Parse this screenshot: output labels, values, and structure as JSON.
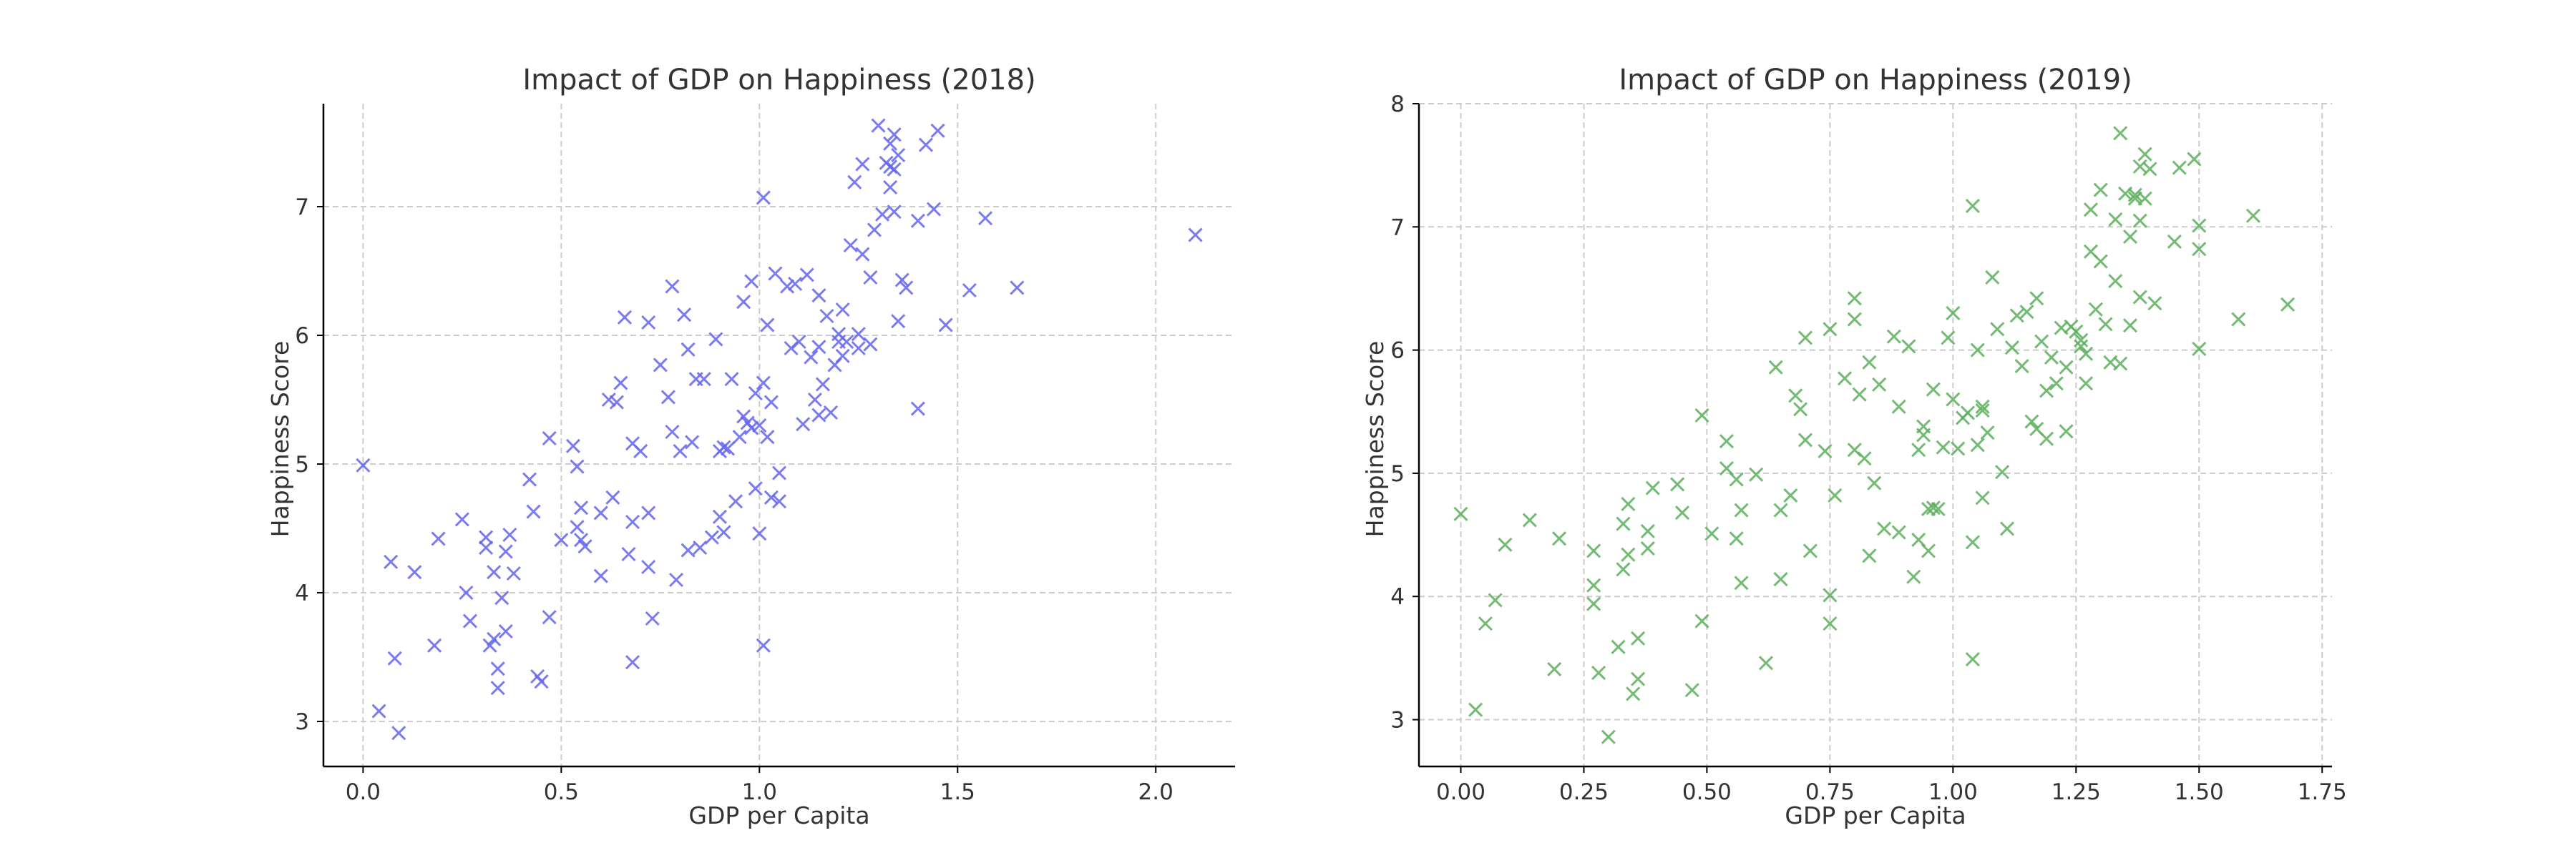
{
  "chart_data": [
    {
      "type": "scatter",
      "title": "Impact of GDP on Happiness (2018)",
      "xlabel": "GDP per Capita",
      "ylabel": "Happiness Score",
      "xlim": [
        -0.1,
        2.2
      ],
      "ylim": [
        2.65,
        7.8
      ],
      "xticks": [
        0.0,
        0.5,
        1.0,
        1.5,
        2.0
      ],
      "xtick_labels": [
        "0.0",
        "0.5",
        "1.0",
        "1.5",
        "2.0"
      ],
      "yticks": [
        3,
        4,
        5,
        6,
        7
      ],
      "ytick_labels": [
        "3",
        "4",
        "5",
        "6",
        "7"
      ],
      "grid": true,
      "marker": "x",
      "color": "#6464ee",
      "points": [
        [
          0.0,
          4.99
        ],
        [
          0.04,
          3.08
        ],
        [
          0.07,
          4.24
        ],
        [
          0.08,
          3.49
        ],
        [
          0.09,
          2.91
        ],
        [
          0.13,
          4.16
        ],
        [
          0.18,
          3.59
        ],
        [
          0.19,
          4.42
        ],
        [
          0.25,
          4.57
        ],
        [
          0.26,
          4.0
        ],
        [
          0.27,
          3.78
        ],
        [
          0.31,
          4.35
        ],
        [
          0.31,
          4.43
        ],
        [
          0.32,
          3.59
        ],
        [
          0.33,
          3.64
        ],
        [
          0.33,
          4.16
        ],
        [
          0.34,
          3.41
        ],
        [
          0.34,
          3.26
        ],
        [
          0.35,
          3.96
        ],
        [
          0.36,
          3.7
        ],
        [
          0.36,
          4.32
        ],
        [
          0.37,
          4.45
        ],
        [
          0.38,
          4.15
        ],
        [
          0.42,
          4.88
        ],
        [
          0.43,
          4.63
        ],
        [
          0.44,
          3.35
        ],
        [
          0.45,
          3.31
        ],
        [
          0.47,
          5.2
        ],
        [
          0.47,
          3.81
        ],
        [
          0.5,
          4.41
        ],
        [
          0.53,
          5.14
        ],
        [
          0.54,
          4.98
        ],
        [
          0.54,
          4.51
        ],
        [
          0.55,
          4.66
        ],
        [
          0.55,
          4.41
        ],
        [
          0.56,
          4.36
        ],
        [
          0.6,
          4.62
        ],
        [
          0.6,
          4.13
        ],
        [
          0.62,
          5.5
        ],
        [
          0.63,
          4.74
        ],
        [
          0.64,
          5.48
        ],
        [
          0.65,
          5.63
        ],
        [
          0.66,
          6.14
        ],
        [
          0.67,
          4.3
        ],
        [
          0.68,
          4.55
        ],
        [
          0.68,
          3.46
        ],
        [
          0.68,
          5.16
        ],
        [
          0.7,
          5.1
        ],
        [
          0.72,
          4.62
        ],
        [
          0.72,
          4.2
        ],
        [
          0.72,
          6.1
        ],
        [
          0.73,
          3.8
        ],
        [
          0.75,
          5.77
        ],
        [
          0.77,
          5.52
        ],
        [
          0.78,
          5.25
        ],
        [
          0.78,
          6.38
        ],
        [
          0.79,
          4.1
        ],
        [
          0.8,
          5.1
        ],
        [
          0.81,
          6.16
        ],
        [
          0.82,
          4.33
        ],
        [
          0.82,
          5.89
        ],
        [
          0.83,
          5.17
        ],
        [
          0.84,
          5.66
        ],
        [
          0.85,
          4.35
        ],
        [
          0.86,
          5.66
        ],
        [
          0.88,
          4.43
        ],
        [
          0.89,
          5.97
        ],
        [
          0.9,
          4.59
        ],
        [
          0.9,
          5.1
        ],
        [
          0.91,
          5.13
        ],
        [
          0.91,
          4.47
        ],
        [
          0.92,
          5.12
        ],
        [
          0.93,
          5.66
        ],
        [
          0.94,
          4.71
        ],
        [
          0.95,
          5.21
        ],
        [
          0.96,
          6.26
        ],
        [
          0.96,
          5.37
        ],
        [
          0.97,
          5.32
        ],
        [
          0.98,
          6.42
        ],
        [
          0.98,
          5.28
        ],
        [
          0.99,
          5.55
        ],
        [
          0.99,
          4.81
        ],
        [
          1.0,
          5.3
        ],
        [
          1.0,
          4.46
        ],
        [
          1.01,
          5.63
        ],
        [
          1.01,
          7.07
        ],
        [
          1.01,
          3.59
        ],
        [
          1.02,
          6.08
        ],
        [
          1.02,
          5.21
        ],
        [
          1.03,
          4.74
        ],
        [
          1.03,
          5.48
        ],
        [
          1.04,
          6.48
        ],
        [
          1.05,
          4.93
        ],
        [
          1.05,
          4.71
        ],
        [
          1.07,
          6.38
        ],
        [
          1.08,
          5.9
        ],
        [
          1.09,
          6.4
        ],
        [
          1.1,
          5.95
        ],
        [
          1.11,
          5.31
        ],
        [
          1.12,
          6.47
        ],
        [
          1.13,
          5.83
        ],
        [
          1.14,
          5.5
        ],
        [
          1.15,
          5.38
        ],
        [
          1.15,
          6.31
        ],
        [
          1.15,
          5.91
        ],
        [
          1.16,
          5.62
        ],
        [
          1.17,
          6.15
        ],
        [
          1.18,
          5.4
        ],
        [
          1.19,
          5.77
        ],
        [
          1.2,
          6.01
        ],
        [
          1.2,
          5.95
        ],
        [
          1.21,
          5.84
        ],
        [
          1.21,
          6.2
        ],
        [
          1.22,
          5.95
        ],
        [
          1.23,
          6.7
        ],
        [
          1.24,
          7.19
        ],
        [
          1.25,
          6.01
        ],
        [
          1.25,
          5.9
        ],
        [
          1.26,
          7.33
        ],
        [
          1.26,
          6.63
        ],
        [
          1.28,
          5.93
        ],
        [
          1.28,
          6.45
        ],
        [
          1.29,
          6.82
        ],
        [
          1.3,
          7.63
        ],
        [
          1.31,
          6.94
        ],
        [
          1.32,
          7.34
        ],
        [
          1.33,
          7.15
        ],
        [
          1.33,
          7.31
        ],
        [
          1.33,
          7.49
        ],
        [
          1.34,
          7.56
        ],
        [
          1.34,
          7.29
        ],
        [
          1.34,
          6.96
        ],
        [
          1.35,
          7.4
        ],
        [
          1.35,
          6.11
        ],
        [
          1.36,
          6.43
        ],
        [
          1.37,
          6.37
        ],
        [
          1.4,
          6.89
        ],
        [
          1.4,
          5.43
        ],
        [
          1.42,
          7.48
        ],
        [
          1.44,
          6.98
        ],
        [
          1.45,
          7.59
        ],
        [
          1.47,
          6.08
        ],
        [
          1.53,
          6.35
        ],
        [
          1.57,
          6.91
        ],
        [
          1.65,
          6.37
        ],
        [
          2.1,
          6.78
        ]
      ]
    },
    {
      "type": "scatter",
      "title": "Impact of GDP on Happiness (2019)",
      "xlabel": "GDP per Capita",
      "ylabel": "Happiness Score",
      "xlim": [
        -0.085,
        1.77
      ],
      "ylim": [
        2.62,
        8.0
      ],
      "xticks": [
        0.0,
        0.25,
        0.5,
        0.75,
        1.0,
        1.25,
        1.5,
        1.75
      ],
      "xtick_labels": [
        "0.00",
        "0.25",
        "0.50",
        "0.75",
        "1.00",
        "1.25",
        "1.50",
        "1.75"
      ],
      "yticks": [
        3,
        4,
        5,
        6,
        7,
        8
      ],
      "ytick_labels": [
        "3",
        "4",
        "5",
        "6",
        "7",
        "8"
      ],
      "grid": true,
      "marker": "x",
      "color": "#5aaf5a",
      "points": [
        [
          0.0,
          4.67
        ],
        [
          0.03,
          3.08
        ],
        [
          0.05,
          3.78
        ],
        [
          0.07,
          3.97
        ],
        [
          0.09,
          4.42
        ],
        [
          0.14,
          4.62
        ],
        [
          0.19,
          3.41
        ],
        [
          0.2,
          4.47
        ],
        [
          0.27,
          4.37
        ],
        [
          0.27,
          4.09
        ],
        [
          0.27,
          3.94
        ],
        [
          0.28,
          3.38
        ],
        [
          0.3,
          2.86
        ],
        [
          0.32,
          3.59
        ],
        [
          0.33,
          4.59
        ],
        [
          0.33,
          4.22
        ],
        [
          0.34,
          4.34
        ],
        [
          0.34,
          4.75
        ],
        [
          0.35,
          3.21
        ],
        [
          0.36,
          3.33
        ],
        [
          0.36,
          3.66
        ],
        [
          0.38,
          4.53
        ],
        [
          0.38,
          4.39
        ],
        [
          0.39,
          4.88
        ],
        [
          0.44,
          4.91
        ],
        [
          0.45,
          4.68
        ],
        [
          0.47,
          3.24
        ],
        [
          0.49,
          3.8
        ],
        [
          0.49,
          5.47
        ],
        [
          0.51,
          4.51
        ],
        [
          0.54,
          5.26
        ],
        [
          0.54,
          5.04
        ],
        [
          0.56,
          4.47
        ],
        [
          0.56,
          4.95
        ],
        [
          0.57,
          4.7
        ],
        [
          0.57,
          4.11
        ],
        [
          0.6,
          4.99
        ],
        [
          0.62,
          3.46
        ],
        [
          0.64,
          5.86
        ],
        [
          0.65,
          4.14
        ],
        [
          0.65,
          4.7
        ],
        [
          0.67,
          4.82
        ],
        [
          0.68,
          5.63
        ],
        [
          0.69,
          5.52
        ],
        [
          0.7,
          6.1
        ],
        [
          0.7,
          5.27
        ],
        [
          0.71,
          4.37
        ],
        [
          0.74,
          5.18
        ],
        [
          0.75,
          6.17
        ],
        [
          0.75,
          4.01
        ],
        [
          0.75,
          3.78
        ],
        [
          0.76,
          4.82
        ],
        [
          0.78,
          5.77
        ],
        [
          0.8,
          5.19
        ],
        [
          0.8,
          6.25
        ],
        [
          0.8,
          6.42
        ],
        [
          0.81,
          5.64
        ],
        [
          0.82,
          5.12
        ],
        [
          0.83,
          5.9
        ],
        [
          0.83,
          4.33
        ],
        [
          0.84,
          4.92
        ],
        [
          0.85,
          5.72
        ],
        [
          0.86,
          4.55
        ],
        [
          0.88,
          6.11
        ],
        [
          0.89,
          5.54
        ],
        [
          0.89,
          4.52
        ],
        [
          0.91,
          6.03
        ],
        [
          0.92,
          4.16
        ],
        [
          0.93,
          5.19
        ],
        [
          0.93,
          4.46
        ],
        [
          0.94,
          5.31
        ],
        [
          0.94,
          5.38
        ],
        [
          0.95,
          4.71
        ],
        [
          0.95,
          4.37
        ],
        [
          0.96,
          5.68
        ],
        [
          0.96,
          4.72
        ],
        [
          0.97,
          4.71
        ],
        [
          0.98,
          5.21
        ],
        [
          0.99,
          6.1
        ],
        [
          1.0,
          5.6
        ],
        [
          1.0,
          6.3
        ],
        [
          1.01,
          5.2
        ],
        [
          1.02,
          5.45
        ],
        [
          1.03,
          5.49
        ],
        [
          1.04,
          7.17
        ],
        [
          1.04,
          4.44
        ],
        [
          1.04,
          3.49
        ],
        [
          1.05,
          5.23
        ],
        [
          1.05,
          6.0
        ],
        [
          1.06,
          5.51
        ],
        [
          1.06,
          5.54
        ],
        [
          1.06,
          4.8
        ],
        [
          1.07,
          5.33
        ],
        [
          1.08,
          6.59
        ],
        [
          1.09,
          6.17
        ],
        [
          1.1,
          5.01
        ],
        [
          1.11,
          4.55
        ],
        [
          1.12,
          6.02
        ],
        [
          1.13,
          6.28
        ],
        [
          1.14,
          5.87
        ],
        [
          1.15,
          6.31
        ],
        [
          1.16,
          5.42
        ],
        [
          1.17,
          6.42
        ],
        [
          1.17,
          5.36
        ],
        [
          1.18,
          6.07
        ],
        [
          1.19,
          5.67
        ],
        [
          1.19,
          5.28
        ],
        [
          1.2,
          5.94
        ],
        [
          1.21,
          5.73
        ],
        [
          1.22,
          6.18
        ],
        [
          1.23,
          5.34
        ],
        [
          1.23,
          5.86
        ],
        [
          1.24,
          6.19
        ],
        [
          1.25,
          6.15
        ],
        [
          1.26,
          6.08
        ],
        [
          1.26,
          6.03
        ],
        [
          1.27,
          5.97
        ],
        [
          1.27,
          5.73
        ],
        [
          1.28,
          7.14
        ],
        [
          1.28,
          6.8
        ],
        [
          1.29,
          6.33
        ],
        [
          1.3,
          6.72
        ],
        [
          1.3,
          7.3
        ],
        [
          1.31,
          6.21
        ],
        [
          1.32,
          5.9
        ],
        [
          1.33,
          6.56
        ],
        [
          1.33,
          7.06
        ],
        [
          1.34,
          5.89
        ],
        [
          1.34,
          7.76
        ],
        [
          1.35,
          7.27
        ],
        [
          1.36,
          6.92
        ],
        [
          1.36,
          6.2
        ],
        [
          1.37,
          7.23
        ],
        [
          1.37,
          7.26
        ],
        [
          1.38,
          7.49
        ],
        [
          1.38,
          6.43
        ],
        [
          1.38,
          7.05
        ],
        [
          1.39,
          7.59
        ],
        [
          1.39,
          7.23
        ],
        [
          1.4,
          7.47
        ],
        [
          1.41,
          6.38
        ],
        [
          1.45,
          6.88
        ],
        [
          1.46,
          7.48
        ],
        [
          1.49,
          7.55
        ],
        [
          1.5,
          7.01
        ],
        [
          1.5,
          6.82
        ],
        [
          1.5,
          6.01
        ],
        [
          1.58,
          6.25
        ],
        [
          1.61,
          7.09
        ],
        [
          1.68,
          6.37
        ]
      ]
    }
  ]
}
